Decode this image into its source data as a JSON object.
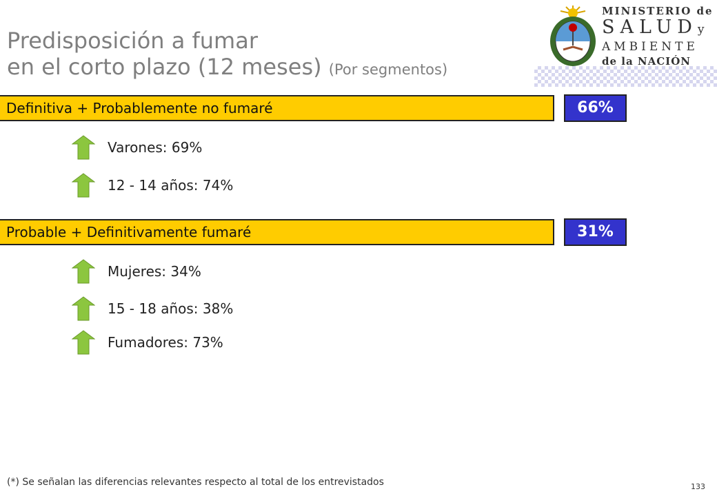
{
  "title": {
    "line1": "Predisposición a fumar",
    "line2": "en el corto plazo (12 meses)",
    "subtitle": "(Por segmentos)"
  },
  "logo": {
    "line1": "MINISTERIO de",
    "line2": "SALUD",
    "line2_suffix": "y",
    "line3": "AMBIENTE",
    "line4": "de la NACIÓN"
  },
  "groups": [
    {
      "label": "Definitiva + Probablemente no fumaré",
      "value": "66%",
      "items": [
        {
          "label": "Varones: 69%",
          "icon": "up-arrow-icon"
        },
        {
          "label": "12 - 14 años: 74%",
          "icon": "up-arrow-icon"
        }
      ]
    },
    {
      "label": "Probable + Definitivamente fumaré",
      "value": "31%",
      "items": [
        {
          "label": "Mujeres: 34%",
          "icon": "up-arrow-icon"
        },
        {
          "label": "15 - 18 años: 38%",
          "icon": "up-arrow-icon"
        },
        {
          "label": "Fumadores: 73%",
          "icon": "up-arrow-icon"
        }
      ]
    }
  ],
  "footnote": "(*) Se señalan las diferencias relevantes respecto al total de los entrevistados",
  "page_number": "133",
  "colors": {
    "bar": "#ffcc00",
    "value_box": "#3333cc",
    "arrow": "#8cc63f",
    "title": "#7f7f7f"
  }
}
